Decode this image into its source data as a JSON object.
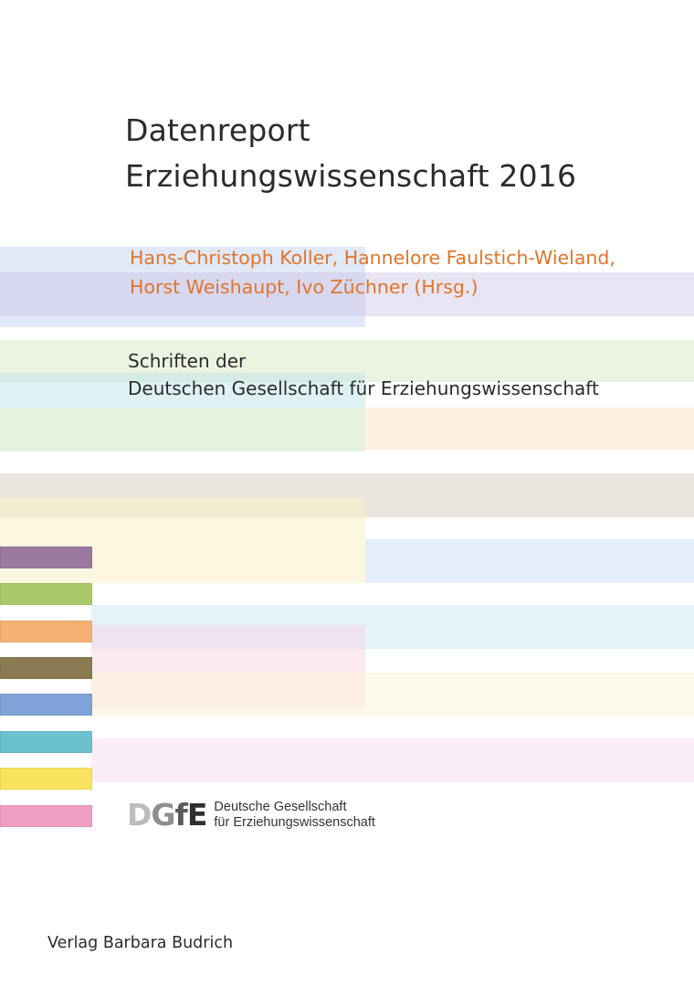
{
  "cover": {
    "title_line1": "Datenreport",
    "title_line2": "Erziehungswissenschaft 2016",
    "editors_line1": "Hans-Christoph Koller, Hannelore Faulstich-Wieland,",
    "editors_line2": "Horst Weishaupt, Ivo Züchner (Hrsg.)",
    "series_line1": "Schriften der",
    "series_line2": "Deutschen Gesellschaft für Erziehungswissenschaft",
    "logo": {
      "mark": "DGfE",
      "line1": "Deutsche Gesellschaft",
      "line2": "für Erziehungswissenschaft"
    },
    "publisher": "Verlag Barbara Budrich"
  },
  "colors": {
    "title_text": "#2b2b2b",
    "editors_text": "#e0752a",
    "swatches": [
      "#9b7a9e",
      "#a9c96a",
      "#f5b073",
      "#8a7b53",
      "#7fa3d6",
      "#6cc1cf",
      "#f8e45f",
      "#ee9fc1"
    ]
  }
}
